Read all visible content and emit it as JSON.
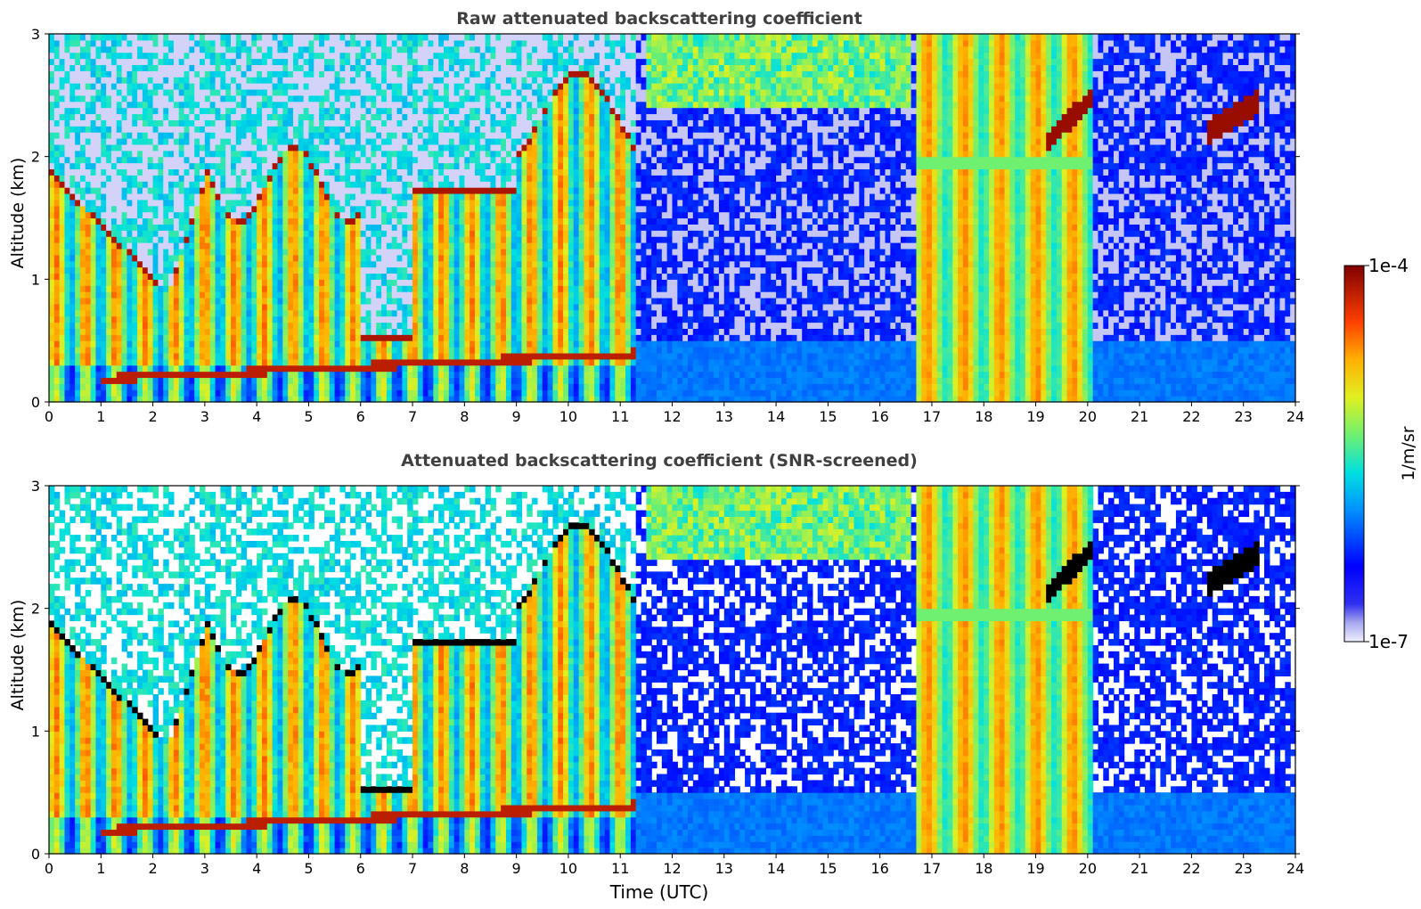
{
  "figure": {
    "x_label": "Time (UTC)",
    "colorbar": {
      "label": "1/m/sr",
      "max_label": "1e-4",
      "min_label": "1e-7",
      "scale": "log"
    }
  },
  "chart_data": [
    {
      "type": "heatmap",
      "title": "Raw attenuated backscattering coefficient",
      "xlabel": "",
      "ylabel": "Altitude (km)",
      "xlim": [
        0,
        24
      ],
      "ylim": [
        0,
        3
      ],
      "xticks": [
        0,
        1,
        2,
        3,
        4,
        5,
        6,
        7,
        8,
        9,
        10,
        11,
        12,
        13,
        14,
        15,
        16,
        17,
        18,
        19,
        20,
        21,
        22,
        23,
        24
      ],
      "yticks": [
        0,
        1,
        2,
        3
      ],
      "screened": false,
      "features": [
        {
          "kind": "aerosol_layer",
          "x": [
            0,
            11.3
          ],
          "y": [
            0,
            1.8
          ],
          "value": "high"
        },
        {
          "kind": "cloud_band",
          "x": [
            16.7,
            20.1
          ],
          "y": [
            0,
            3
          ],
          "value": "high"
        },
        {
          "kind": "cloud_layer",
          "x": [
            19.2,
            20.1
          ],
          "y": [
            2.1,
            2.5
          ],
          "value": "very high"
        },
        {
          "kind": "cloud_layer",
          "x": [
            22.3,
            23.3
          ],
          "y": [
            2.2,
            2.5
          ],
          "value": "very high"
        }
      ]
    },
    {
      "type": "heatmap",
      "title": "Attenuated backscattering coefficient (SNR-screened)",
      "xlabel": "Time (UTC)",
      "ylabel": "Altitude (km)",
      "xlim": [
        0,
        24
      ],
      "ylim": [
        0,
        3
      ],
      "xticks": [
        0,
        1,
        2,
        3,
        4,
        5,
        6,
        7,
        8,
        9,
        10,
        11,
        12,
        13,
        14,
        15,
        16,
        17,
        18,
        19,
        20,
        21,
        22,
        23,
        24
      ],
      "yticks": [
        0,
        1,
        2,
        3
      ],
      "screened": true,
      "features": [
        {
          "kind": "aerosol_layer",
          "x": [
            0,
            11.3
          ],
          "y": [
            0,
            1.8
          ],
          "value": "high"
        },
        {
          "kind": "cloud_band",
          "x": [
            16.7,
            20.1
          ],
          "y": [
            0,
            3
          ],
          "value": "high"
        },
        {
          "kind": "cloud_layer",
          "x": [
            19.2,
            20.1
          ],
          "y": [
            2.1,
            2.5
          ],
          "value": "very high"
        },
        {
          "kind": "cloud_layer",
          "x": [
            22.3,
            23.3
          ],
          "y": [
            2.2,
            2.5
          ],
          "value": "very high"
        }
      ]
    }
  ]
}
